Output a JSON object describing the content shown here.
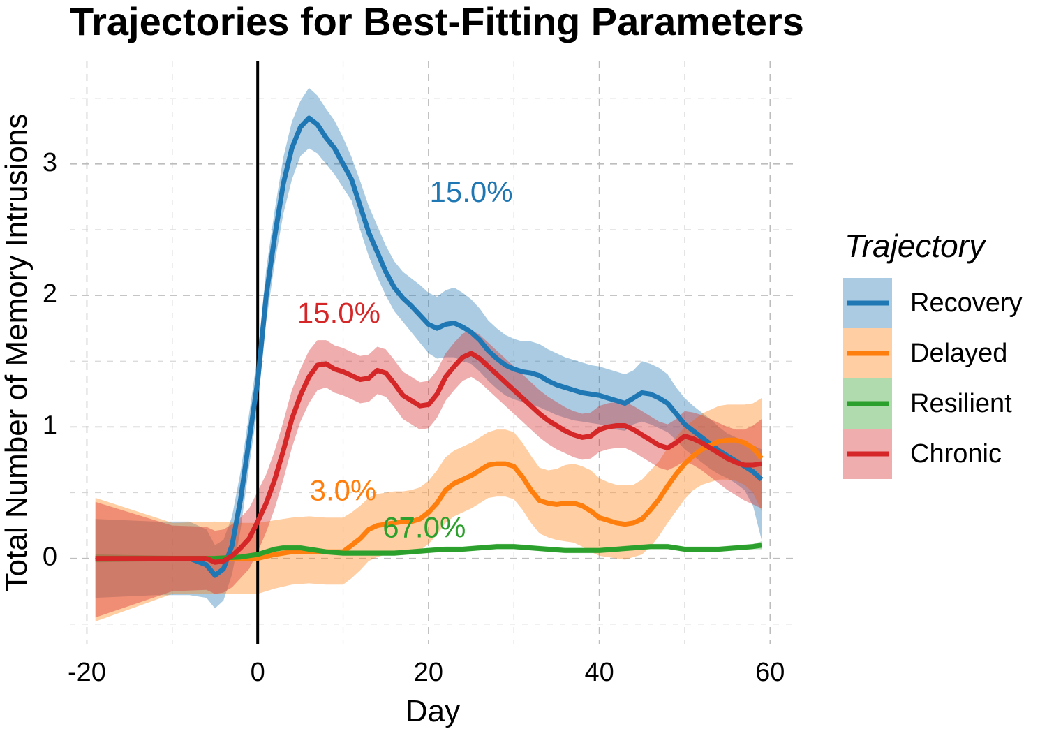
{
  "chart_data": {
    "type": "line",
    "title": "Trajectories for Best-Fitting Parameters",
    "xlabel": "Day",
    "ylabel": "Total Number of Memory Intrusions",
    "xlim": [
      -22,
      63
    ],
    "ylim": [
      -0.65,
      3.78
    ],
    "x_ticks": [
      -20,
      0,
      20,
      40,
      60
    ],
    "x_tick_labels": [
      "-20",
      "0",
      "20",
      "40",
      "60"
    ],
    "y_ticks": [
      0,
      1,
      2,
      3
    ],
    "y_tick_labels": [
      "0",
      "1",
      "2",
      "3"
    ],
    "grid": true,
    "legend_title": "Trajectory",
    "legend_position": "right",
    "vline_x": 0,
    "series": [
      {
        "name": "Recovery",
        "color": "#1f77b4",
        "band_color": "#a6c8e0",
        "label": "15.0%",
        "label_x": 25,
        "label_y": 2.77,
        "x": [
          -19,
          -12,
          -8,
          -6,
          -5,
          -4,
          -3,
          -2,
          -1,
          0,
          1,
          2,
          3,
          4,
          5,
          6,
          7,
          8,
          9,
          10,
          11,
          12,
          13,
          14,
          15,
          16,
          17,
          18,
          19,
          20,
          21,
          22,
          23,
          24,
          25,
          26,
          27,
          28,
          29,
          30,
          31,
          32,
          33,
          34,
          35,
          36,
          37,
          38,
          39,
          40,
          41,
          42,
          43,
          44,
          45,
          46,
          47,
          48,
          49,
          50,
          51,
          52,
          53,
          54,
          55,
          56,
          57,
          58,
          59
        ],
        "y": [
          0,
          0,
          0,
          -0.05,
          -0.13,
          -0.08,
          0.1,
          0.45,
          0.9,
          1.35,
          2.0,
          2.45,
          2.85,
          3.12,
          3.28,
          3.35,
          3.3,
          3.2,
          3.12,
          3.0,
          2.88,
          2.68,
          2.48,
          2.33,
          2.18,
          2.06,
          1.98,
          1.92,
          1.85,
          1.78,
          1.75,
          1.78,
          1.79,
          1.76,
          1.72,
          1.66,
          1.58,
          1.52,
          1.47,
          1.44,
          1.42,
          1.41,
          1.39,
          1.35,
          1.32,
          1.3,
          1.28,
          1.26,
          1.25,
          1.24,
          1.22,
          1.2,
          1.18,
          1.22,
          1.26,
          1.25,
          1.22,
          1.18,
          1.1,
          1.02,
          0.97,
          0.92,
          0.87,
          0.82,
          0.78,
          0.74,
          0.7,
          0.66,
          0.6
        ],
        "lower": [
          -0.3,
          -0.28,
          -0.28,
          -0.3,
          -0.38,
          -0.32,
          -0.12,
          0.22,
          0.7,
          1.15,
          1.8,
          2.25,
          2.62,
          2.88,
          3.06,
          3.12,
          3.08,
          3.0,
          2.92,
          2.82,
          2.72,
          2.5,
          2.3,
          2.14,
          2.0,
          1.88,
          1.8,
          1.72,
          1.64,
          1.56,
          1.52,
          1.53,
          1.53,
          1.5,
          1.48,
          1.42,
          1.35,
          1.29,
          1.24,
          1.21,
          1.19,
          1.17,
          1.15,
          1.12,
          1.09,
          1.07,
          1.05,
          1.04,
          1.03,
          1.02,
          1.0,
          0.98,
          0.97,
          1.02,
          1.04,
          1.02,
          0.99,
          0.96,
          0.9,
          0.83,
          0.78,
          0.73,
          0.68,
          0.64,
          0.61,
          0.57,
          0.52,
          0.4,
          0.14
        ],
        "upper": [
          0.3,
          0.28,
          0.28,
          0.22,
          0.1,
          0.14,
          0.32,
          0.66,
          1.1,
          1.55,
          2.2,
          2.65,
          3.05,
          3.32,
          3.48,
          3.58,
          3.52,
          3.42,
          3.33,
          3.2,
          3.05,
          2.87,
          2.68,
          2.53,
          2.38,
          2.26,
          2.18,
          2.13,
          2.08,
          2.02,
          1.99,
          2.04,
          2.06,
          2.02,
          1.97,
          1.9,
          1.81,
          1.75,
          1.7,
          1.67,
          1.65,
          1.65,
          1.63,
          1.59,
          1.56,
          1.53,
          1.51,
          1.49,
          1.47,
          1.46,
          1.44,
          1.42,
          1.4,
          1.43,
          1.5,
          1.48,
          1.45,
          1.4,
          1.3,
          1.22,
          1.16,
          1.11,
          1.06,
          1.0,
          0.95,
          0.92,
          0.89,
          0.86,
          0.83
        ]
      },
      {
        "name": "Delayed",
        "color": "#ff7f0e",
        "band_color": "#ffc795",
        "label": "3.0%",
        "label_x": 10,
        "label_y": 0.5,
        "x": [
          -19,
          -10,
          -5,
          -2,
          0,
          2,
          4,
          6,
          8,
          10,
          11,
          12,
          13,
          14,
          15,
          16,
          17,
          18,
          19,
          20,
          21,
          22,
          23,
          24,
          25,
          26,
          27,
          28,
          29,
          30,
          31,
          32,
          33,
          34,
          35,
          36,
          37,
          38,
          39,
          40,
          41,
          42,
          43,
          44,
          45,
          46,
          47,
          48,
          49,
          50,
          51,
          52,
          53,
          54,
          55,
          56,
          57,
          58,
          59
        ],
        "y": [
          0,
          0,
          0,
          0,
          0,
          0.03,
          0.05,
          0.05,
          0.05,
          0.05,
          0.1,
          0.15,
          0.22,
          0.25,
          0.26,
          0.27,
          0.28,
          0.28,
          0.3,
          0.35,
          0.42,
          0.52,
          0.57,
          0.6,
          0.63,
          0.67,
          0.71,
          0.72,
          0.72,
          0.7,
          0.62,
          0.52,
          0.44,
          0.42,
          0.41,
          0.42,
          0.42,
          0.4,
          0.36,
          0.31,
          0.29,
          0.27,
          0.26,
          0.27,
          0.3,
          0.37,
          0.45,
          0.55,
          0.64,
          0.72,
          0.78,
          0.83,
          0.86,
          0.89,
          0.9,
          0.9,
          0.88,
          0.84,
          0.76
        ],
        "lower": [
          -0.48,
          -0.27,
          -0.27,
          -0.27,
          -0.27,
          -0.23,
          -0.2,
          -0.19,
          -0.2,
          -0.2,
          -0.15,
          -0.09,
          -0.02,
          0.01,
          0.03,
          0.05,
          0.05,
          0.04,
          0.06,
          0.11,
          0.18,
          0.27,
          0.32,
          0.35,
          0.38,
          0.42,
          0.46,
          0.47,
          0.47,
          0.45,
          0.37,
          0.27,
          0.19,
          0.16,
          0.14,
          0.13,
          0.12,
          0.09,
          0.05,
          0.02,
          0.01,
          0.0,
          -0.01,
          0.01,
          0.03,
          0.09,
          0.17,
          0.27,
          0.36,
          0.45,
          0.52,
          0.56,
          0.58,
          0.6,
          0.6,
          0.59,
          0.56,
          0.5,
          0.36
        ],
        "upper": [
          0.46,
          0.27,
          0.28,
          0.27,
          0.27,
          0.29,
          0.31,
          0.32,
          0.31,
          0.31,
          0.35,
          0.4,
          0.46,
          0.49,
          0.5,
          0.51,
          0.51,
          0.52,
          0.54,
          0.59,
          0.67,
          0.77,
          0.82,
          0.85,
          0.88,
          0.92,
          0.96,
          0.98,
          0.98,
          0.96,
          0.88,
          0.78,
          0.69,
          0.67,
          0.68,
          0.71,
          0.72,
          0.7,
          0.67,
          0.61,
          0.58,
          0.56,
          0.56,
          0.56,
          0.6,
          0.67,
          0.74,
          0.84,
          0.92,
          1.0,
          1.05,
          1.1,
          1.13,
          1.16,
          1.17,
          1.17,
          1.17,
          1.18,
          1.22
        ]
      },
      {
        "name": "Resilient",
        "color": "#2ca02c",
        "band_color": "#a8dba8",
        "label": "67.0%",
        "label_x": 19.5,
        "label_y": 0.22,
        "x": [
          -19,
          -10,
          -5,
          -2,
          0,
          1,
          2,
          3,
          4,
          5,
          6,
          8,
          10,
          12,
          14,
          16,
          18,
          20,
          22,
          24,
          26,
          28,
          30,
          32,
          34,
          36,
          38,
          40,
          42,
          44,
          46,
          48,
          50,
          52,
          54,
          56,
          58,
          59
        ],
        "y": [
          0,
          0,
          0,
          0.01,
          0.03,
          0.05,
          0.07,
          0.08,
          0.08,
          0.08,
          0.07,
          0.05,
          0.04,
          0.04,
          0.04,
          0.04,
          0.05,
          0.06,
          0.07,
          0.07,
          0.08,
          0.09,
          0.09,
          0.08,
          0.07,
          0.06,
          0.06,
          0.06,
          0.07,
          0.08,
          0.09,
          0.09,
          0.07,
          0.07,
          0.07,
          0.08,
          0.09,
          0.1
        ],
        "lower": [
          -0.03,
          -0.02,
          -0.02,
          -0.01,
          0.01,
          0.03,
          0.05,
          0.06,
          0.06,
          0.06,
          0.05,
          0.03,
          0.02,
          0.02,
          0.02,
          0.02,
          0.03,
          0.04,
          0.05,
          0.05,
          0.06,
          0.07,
          0.07,
          0.06,
          0.05,
          0.04,
          0.04,
          0.04,
          0.05,
          0.06,
          0.07,
          0.07,
          0.05,
          0.05,
          0.05,
          0.06,
          0.07,
          0.07
        ],
        "upper": [
          0.03,
          0.02,
          0.02,
          0.03,
          0.05,
          0.07,
          0.09,
          0.1,
          0.1,
          0.1,
          0.09,
          0.07,
          0.06,
          0.06,
          0.06,
          0.06,
          0.07,
          0.08,
          0.09,
          0.09,
          0.1,
          0.11,
          0.11,
          0.1,
          0.09,
          0.08,
          0.08,
          0.08,
          0.09,
          0.1,
          0.11,
          0.11,
          0.09,
          0.09,
          0.09,
          0.1,
          0.11,
          0.13
        ]
      },
      {
        "name": "Chronic",
        "color": "#d62728",
        "band_color": "#ea9d9e",
        "label": "15.0%",
        "label_x": 9.5,
        "label_y": 1.85,
        "x": [
          -19,
          -10,
          -6,
          -5,
          -4,
          -3,
          -2,
          -1,
          0,
          1,
          2,
          3,
          4,
          5,
          6,
          7,
          8,
          9,
          10,
          11,
          12,
          13,
          14,
          15,
          16,
          17,
          18,
          19,
          20,
          21,
          22,
          23,
          24,
          25,
          26,
          27,
          28,
          29,
          30,
          31,
          32,
          33,
          34,
          35,
          36,
          37,
          38,
          39,
          40,
          41,
          42,
          43,
          44,
          45,
          46,
          47,
          48,
          49,
          50,
          51,
          52,
          53,
          54,
          55,
          56,
          57,
          58,
          59
        ],
        "y": [
          0,
          0,
          0,
          -0.03,
          -0.02,
          0.02,
          0.08,
          0.15,
          0.28,
          0.42,
          0.6,
          0.82,
          1.06,
          1.24,
          1.38,
          1.47,
          1.48,
          1.44,
          1.42,
          1.39,
          1.36,
          1.37,
          1.43,
          1.41,
          1.33,
          1.24,
          1.2,
          1.16,
          1.17,
          1.25,
          1.38,
          1.46,
          1.53,
          1.56,
          1.52,
          1.46,
          1.4,
          1.34,
          1.28,
          1.22,
          1.16,
          1.1,
          1.05,
          1.01,
          0.97,
          0.94,
          0.92,
          0.93,
          0.98,
          1.0,
          1.01,
          1.01,
          0.98,
          0.94,
          0.9,
          0.86,
          0.84,
          0.88,
          0.93,
          0.91,
          0.88,
          0.84,
          0.8,
          0.76,
          0.73,
          0.71,
          0.71,
          0.72
        ],
        "lower": [
          -0.45,
          -0.25,
          -0.24,
          -0.27,
          -0.26,
          -0.22,
          -0.15,
          -0.08,
          0.05,
          0.2,
          0.38,
          0.6,
          0.84,
          1.04,
          1.18,
          1.28,
          1.3,
          1.26,
          1.24,
          1.21,
          1.18,
          1.19,
          1.25,
          1.23,
          1.15,
          1.06,
          1.02,
          0.98,
          0.99,
          1.07,
          1.2,
          1.28,
          1.35,
          1.38,
          1.34,
          1.28,
          1.22,
          1.16,
          1.1,
          1.04,
          0.98,
          0.92,
          0.87,
          0.83,
          0.8,
          0.77,
          0.75,
          0.76,
          0.81,
          0.83,
          0.84,
          0.84,
          0.81,
          0.77,
          0.73,
          0.69,
          0.67,
          0.7,
          0.74,
          0.71,
          0.67,
          0.62,
          0.57,
          0.52,
          0.48,
          0.44,
          0.41,
          0.38
        ],
        "upper": [
          0.43,
          0.25,
          0.24,
          0.21,
          0.22,
          0.26,
          0.31,
          0.38,
          0.51,
          0.64,
          0.82,
          1.04,
          1.28,
          1.44,
          1.58,
          1.66,
          1.66,
          1.62,
          1.6,
          1.57,
          1.54,
          1.55,
          1.61,
          1.59,
          1.51,
          1.42,
          1.38,
          1.34,
          1.35,
          1.43,
          1.56,
          1.64,
          1.71,
          1.74,
          1.7,
          1.64,
          1.58,
          1.52,
          1.46,
          1.4,
          1.34,
          1.28,
          1.23,
          1.19,
          1.15,
          1.12,
          1.1,
          1.11,
          1.16,
          1.18,
          1.19,
          1.19,
          1.16,
          1.12,
          1.08,
          1.04,
          1.02,
          1.06,
          1.12,
          1.11,
          1.09,
          1.06,
          1.03,
          1.0,
          0.98,
          0.98,
          1.01,
          1.06
        ]
      }
    ]
  }
}
